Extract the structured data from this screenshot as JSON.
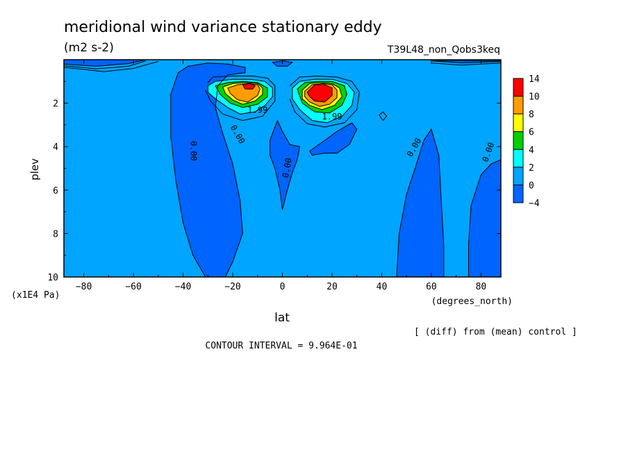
{
  "chart_data": {
    "type": "contour",
    "title": "meridional wind variance  stationary eddy",
    "units": "(m2 s-2)",
    "experiment": "T39L48_non_Qobs3keq",
    "xlabel": "lat",
    "xunits": "(degrees_north)",
    "ylabel": "plev",
    "yunits": "(x1E4 Pa)",
    "xlim": [
      -88,
      88
    ],
    "ylim": [
      10,
      0
    ],
    "x_ticks": [
      -80,
      -60,
      -40,
      -20,
      0,
      20,
      40,
      60,
      80
    ],
    "x_tick_labels": [
      "−80",
      "−60",
      "−40",
      "−20",
      "0",
      "20",
      "40",
      "60",
      "80"
    ],
    "y_ticks": [
      2,
      4,
      6,
      8,
      10
    ],
    "y_tick_labels": [
      "2",
      "4",
      "6",
      "8",
      "10"
    ],
    "colorbar_labels": [
      "14",
      "10",
      "8",
      "6",
      "4",
      "2",
      "0",
      "−4"
    ],
    "colorbar_colors": [
      "#ff0000",
      "#ff9c00",
      "#ffff00",
      "#00d200",
      "#00ffff",
      "#00a5ff",
      "#0064ff"
    ],
    "contour_labels": [
      {
        "text": "0.00",
        "x": -37,
        "y": 4.2,
        "rotate": 90
      },
      {
        "text": "0.00",
        "x": -19,
        "y": 3.5,
        "rotate": 60
      },
      {
        "text": "0.00",
        "x": 3,
        "y": 5.0,
        "rotate": -80
      },
      {
        "text": "0.00",
        "x": 54,
        "y": 4.1,
        "rotate": -60
      },
      {
        "text": "0.00",
        "x": 84,
        "y": 4.3,
        "rotate": -70
      },
      {
        "text": "1.99",
        "x": -10,
        "y": 2.45,
        "rotate": 0
      },
      {
        "text": "1.99",
        "x": 20,
        "y": 2.75,
        "rotate": 0
      }
    ],
    "diff_note": "[ (diff) from (mean) control ]",
    "contour_interval": "CONTOUR INTERVAL = 9.964E-01"
  }
}
